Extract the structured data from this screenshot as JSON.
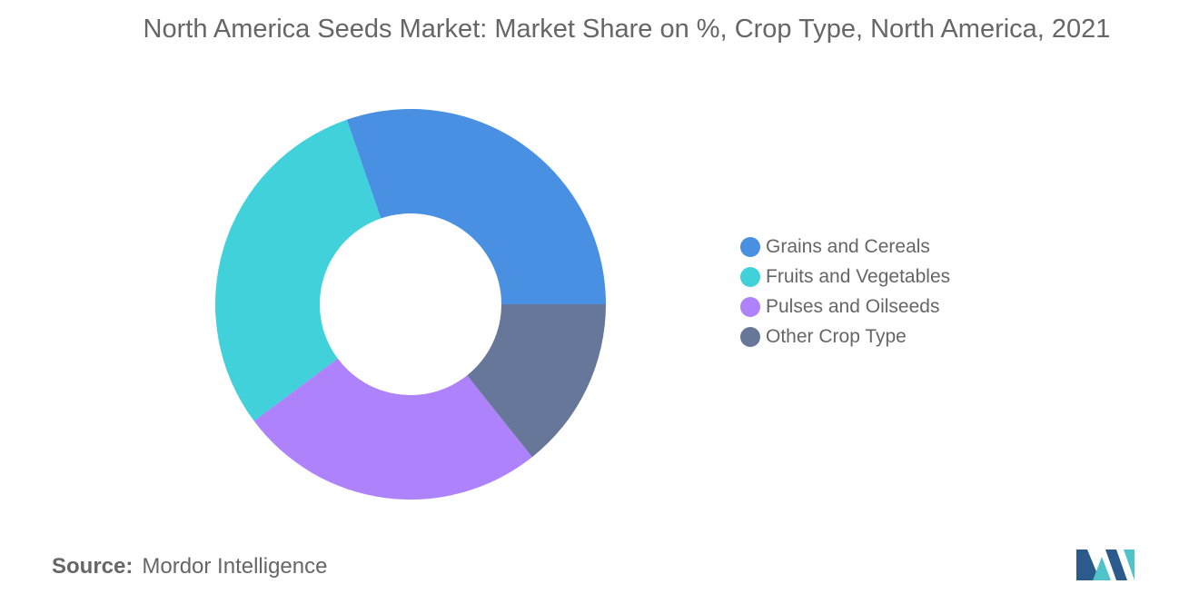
{
  "chart_data": {
    "type": "pie",
    "title": "North America Seeds Market: Market Share on %, Crop Type, North America, 2021",
    "donut": true,
    "legend_position": "right",
    "series": [
      {
        "name": "Grains and Cereals",
        "value": 30.3,
        "color": "#4a90e2"
      },
      {
        "name": "Fruits and Vegetables",
        "value": 29.9,
        "color": "#41d1da"
      },
      {
        "name": "Pulses and Oilseeds",
        "value": 25.5,
        "color": "#ad82fa"
      },
      {
        "name": "Other Crop Type",
        "value": 14.3,
        "color": "#667799"
      }
    ]
  },
  "source": {
    "label": "Source:",
    "value": "Mordor Intelligence"
  },
  "logo": {
    "icon": "mordor-intelligence-logo",
    "colors": [
      "#2d5a8c",
      "#4fc3c8"
    ]
  }
}
